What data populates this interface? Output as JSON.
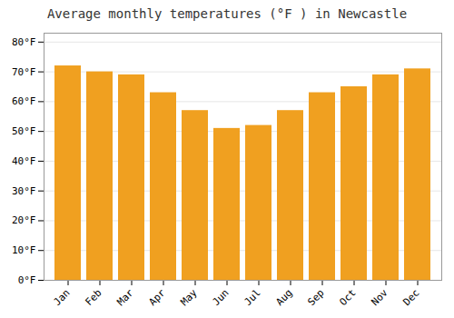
{
  "chart_data": {
    "type": "bar",
    "title": "Average monthly temperatures (°F ) in Newcastle",
    "categories": [
      "Jan",
      "Feb",
      "Mar",
      "Apr",
      "May",
      "Jun",
      "Jul",
      "Aug",
      "Sep",
      "Oct",
      "Nov",
      "Dec"
    ],
    "values": [
      72,
      70,
      69,
      63,
      57,
      51,
      52,
      57,
      63,
      65,
      69,
      71
    ],
    "color": "#F0A020",
    "ylim": [
      0,
      83
    ],
    "yticks": [
      {
        "value": 0,
        "label": "0°F"
      },
      {
        "value": 10,
        "label": "10°F"
      },
      {
        "value": 20,
        "label": "20°F"
      },
      {
        "value": 30,
        "label": "30°F"
      },
      {
        "value": 40,
        "label": "40°F"
      },
      {
        "value": 50,
        "label": "50°F"
      },
      {
        "value": 60,
        "label": "60°F"
      },
      {
        "value": 70,
        "label": "70°F"
      },
      {
        "value": 80,
        "label": "80°F"
      }
    ],
    "grid": true
  }
}
